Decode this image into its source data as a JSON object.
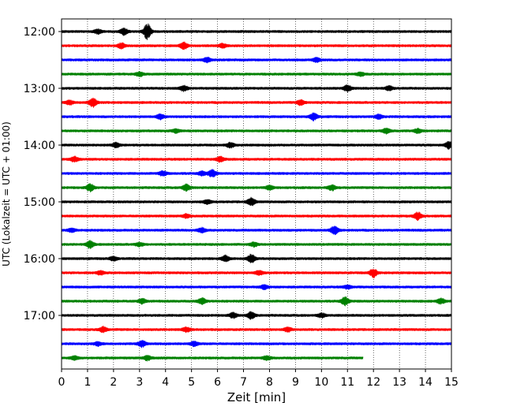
{
  "chart_data": {
    "type": "line",
    "title": "",
    "xlabel": "Zeit  [min]",
    "ylabel": "UTC (Lokalzeit = UTC + 01:00)",
    "xlim": [
      0,
      15
    ],
    "x_ticks": [
      "0",
      "1",
      "2",
      "3",
      "4",
      "5",
      "6",
      "7",
      "8",
      "9",
      "10",
      "11",
      "12",
      "13",
      "14",
      "15"
    ],
    "y_ticks": [
      "12:00",
      "13:00",
      "14:00",
      "15:00",
      "16:00",
      "17:00"
    ],
    "grid": "vertical-dotted",
    "trace_interval_min": 15,
    "series_colors": [
      "#000000",
      "#ff0000",
      "#0000ff",
      "#008000"
    ],
    "series": [
      {
        "start": "12:00",
        "end_min": 15,
        "bursts": [
          [
            3.3,
            3.0
          ],
          [
            2.4,
            1.2
          ],
          [
            1.4,
            0.8
          ]
        ]
      },
      {
        "start": "12:15",
        "end_min": 15,
        "bursts": [
          [
            4.7,
            1.4
          ],
          [
            2.3,
            1.0
          ],
          [
            6.2,
            0.8
          ]
        ]
      },
      {
        "start": "12:30",
        "end_min": 15,
        "bursts": [
          [
            5.6,
            0.9
          ],
          [
            9.8,
            0.8
          ]
        ]
      },
      {
        "start": "12:45",
        "end_min": 15,
        "bursts": [
          [
            3.0,
            0.8
          ],
          [
            11.5,
            0.7
          ]
        ]
      },
      {
        "start": "13:00",
        "end_min": 15,
        "bursts": [
          [
            11.0,
            1.2
          ],
          [
            4.7,
            1.0
          ],
          [
            12.6,
            0.8
          ]
        ]
      },
      {
        "start": "13:15",
        "end_min": 15,
        "bursts": [
          [
            1.2,
            1.8
          ],
          [
            9.2,
            1.0
          ],
          [
            0.3,
            0.8
          ]
        ]
      },
      {
        "start": "13:30",
        "end_min": 15,
        "bursts": [
          [
            9.7,
            1.4
          ],
          [
            3.8,
            0.9
          ],
          [
            12.2,
            0.8
          ]
        ]
      },
      {
        "start": "13:45",
        "end_min": 15,
        "bursts": [
          [
            12.5,
            1.0
          ],
          [
            4.4,
            0.7
          ],
          [
            13.7,
            0.8
          ]
        ]
      },
      {
        "start": "14:00",
        "end_min": 15,
        "bursts": [
          [
            2.1,
            0.9
          ],
          [
            6.5,
            1.0
          ],
          [
            14.9,
            1.4
          ]
        ]
      },
      {
        "start": "14:15",
        "end_min": 15,
        "bursts": [
          [
            0.5,
            1.0
          ],
          [
            6.1,
            1.0
          ]
        ]
      },
      {
        "start": "14:30",
        "end_min": 15,
        "bursts": [
          [
            3.9,
            0.9
          ],
          [
            5.8,
            1.4
          ],
          [
            5.4,
            0.8
          ]
        ]
      },
      {
        "start": "14:45",
        "end_min": 15,
        "bursts": [
          [
            1.1,
            1.4
          ],
          [
            4.8,
            1.2
          ],
          [
            10.4,
            1.0
          ],
          [
            8.0,
            0.8
          ]
        ]
      },
      {
        "start": "15:00",
        "end_min": 15,
        "bursts": [
          [
            7.3,
            1.5
          ],
          [
            5.6,
            0.8
          ]
        ]
      },
      {
        "start": "15:15",
        "end_min": 15,
        "bursts": [
          [
            13.7,
            1.4
          ],
          [
            4.8,
            0.7
          ]
        ]
      },
      {
        "start": "15:30",
        "end_min": 15,
        "bursts": [
          [
            10.5,
            1.6
          ],
          [
            5.4,
            0.9
          ],
          [
            0.4,
            0.7
          ]
        ]
      },
      {
        "start": "15:45",
        "end_min": 15,
        "bursts": [
          [
            1.1,
            1.4
          ],
          [
            7.4,
            0.8
          ],
          [
            3.0,
            0.7
          ]
        ]
      },
      {
        "start": "16:00",
        "end_min": 15,
        "bursts": [
          [
            7.3,
            1.6
          ],
          [
            6.3,
            1.2
          ],
          [
            2.0,
            0.8
          ]
        ]
      },
      {
        "start": "16:15",
        "end_min": 15,
        "bursts": [
          [
            12.0,
            1.6
          ],
          [
            7.6,
            0.8
          ],
          [
            1.5,
            0.7
          ]
        ]
      },
      {
        "start": "16:30",
        "end_min": 15,
        "bursts": [
          [
            7.8,
            0.8
          ],
          [
            11.0,
            0.7
          ]
        ]
      },
      {
        "start": "16:45",
        "end_min": 15,
        "bursts": [
          [
            10.9,
            1.6
          ],
          [
            5.4,
            1.2
          ],
          [
            3.1,
            0.9
          ],
          [
            14.6,
            1.0
          ]
        ]
      },
      {
        "start": "17:00",
        "end_min": 15,
        "bursts": [
          [
            7.3,
            1.4
          ],
          [
            6.6,
            1.0
          ],
          [
            10.0,
            0.8
          ]
        ]
      },
      {
        "start": "17:15",
        "end_min": 15,
        "bursts": [
          [
            1.6,
            1.0
          ],
          [
            4.8,
            0.9
          ],
          [
            8.7,
            0.8
          ]
        ]
      },
      {
        "start": "17:30",
        "end_min": 15,
        "bursts": [
          [
            3.1,
            1.2
          ],
          [
            5.1,
            0.9
          ],
          [
            1.4,
            0.7
          ]
        ]
      },
      {
        "start": "17:45",
        "end_min": 11.6,
        "bursts": [
          [
            3.3,
            0.9
          ],
          [
            7.9,
            0.8
          ],
          [
            0.5,
            0.7
          ]
        ]
      }
    ]
  }
}
